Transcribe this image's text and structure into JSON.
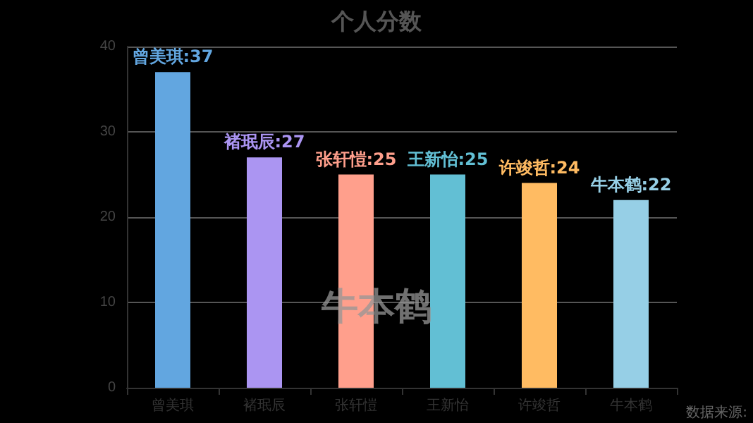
{
  "chart_data": {
    "type": "bar",
    "title": "个人分数",
    "categories": [
      "曾美琪",
      "褚珉辰",
      "张轩愷",
      "王新怡",
      "许竣哲",
      "牛本鹤"
    ],
    "values": [
      37,
      27,
      25,
      25,
      24,
      22
    ],
    "colors": [
      "#62a6e0",
      "#ab95f2",
      "#ff9f8c",
      "#62bfd4",
      "#ffbb62",
      "#96cfe6"
    ],
    "value_labels": [
      "曾美琪:37",
      "褚珉辰:27",
      "张轩愷:25",
      "王新怡:25",
      "许竣哲:24",
      "牛本鹤:22"
    ],
    "ylim": [
      0,
      40
    ],
    "yticks": [
      0,
      10,
      20,
      30,
      40
    ],
    "grid": "y",
    "annotations": [
      "牛本鹤",
      "数据来源:"
    ]
  }
}
